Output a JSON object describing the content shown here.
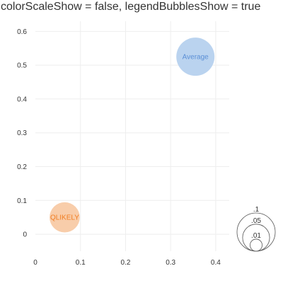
{
  "chart_data": {
    "type": "scatter",
    "title": "colorScaleShow = false, legendBubblesShow = true",
    "xlim": [
      0,
      0.43
    ],
    "ylim": [
      -0.05,
      0.63
    ],
    "x_ticks": [
      0,
      0.1,
      0.2,
      0.3,
      0.4
    ],
    "x_tick_labels": [
      "0",
      "0.1",
      "0.2",
      "0.3",
      "0.4"
    ],
    "y_ticks": [
      0,
      0.1,
      0.2,
      0.3,
      0.4,
      0.5,
      0.6
    ],
    "y_tick_labels": [
      "0",
      "0.1",
      "0.2",
      "0.3",
      "0.4",
      "0.5",
      "0.6"
    ],
    "grid": true,
    "series": [
      {
        "label": "Average",
        "x": 0.355,
        "y": 0.525,
        "size": 0.1,
        "color": "#bad3ef",
        "label_color": "#5b8fd6"
      },
      {
        "label": "QLIKELY",
        "x": 0.065,
        "y": 0.05,
        "size": 0.0625,
        "color": "#f8cdaa",
        "label_color": "#f07d22"
      }
    ],
    "size_legend": {
      "show": true,
      "placement": "bottom-right",
      "values": [
        0.1,
        0.05,
        0.01
      ],
      "labels": [
        ".1",
        ".05",
        ".01"
      ]
    }
  }
}
